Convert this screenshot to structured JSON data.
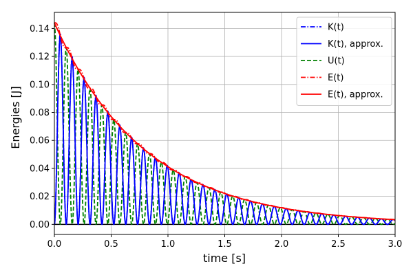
{
  "chart_data": {
    "type": "line",
    "xlabel": "time [s]",
    "ylabel": "Energies [J]",
    "xlim": [
      0,
      3.0
    ],
    "ylim": [
      -0.0072,
      0.1515
    ],
    "grid": true,
    "legend_placement": "top-right",
    "x_ticks": [
      0.0,
      0.5,
      1.0,
      1.5,
      2.0,
      2.5,
      3.0
    ],
    "x_tick_labels": [
      "0.0",
      "0.5",
      "1.0",
      "1.5",
      "2.0",
      "2.5",
      "3.0"
    ],
    "y_ticks": [
      0.0,
      0.02,
      0.04,
      0.06,
      0.08,
      0.1,
      0.12,
      0.14
    ],
    "y_tick_labels": [
      "0.00",
      "0.02",
      "0.04",
      "0.06",
      "0.08",
      "0.10",
      "0.12",
      "0.14"
    ],
    "series": [
      {
        "name": "K(t)",
        "legend_label": "K(t)",
        "color": "#0000ff",
        "style": "dashdot",
        "model": {
          "E0": 0.144,
          "decay_rate": 1.25,
          "omega": 30.0,
          "phase": 0.0,
          "energy_part": "kinetic",
          "exact": true
        }
      },
      {
        "name": "K(t), approx.",
        "legend_label": "K(t), approx.",
        "color": "#0000ff",
        "style": "solid",
        "model": {
          "E0": 0.144,
          "decay_rate": 1.25,
          "omega": 30.0,
          "phase": 0.0,
          "energy_part": "kinetic",
          "exact": false
        }
      },
      {
        "name": "U(t)",
        "legend_label": "U(t)",
        "color": "#008000",
        "style": "dashed",
        "model": {
          "E0": 0.144,
          "decay_rate": 1.25,
          "omega": 30.0,
          "phase": 0.0,
          "energy_part": "potential",
          "exact": false
        }
      },
      {
        "name": "E(t)",
        "legend_label": "E(t)",
        "color": "#ff0000",
        "style": "dashdot",
        "model": {
          "E0": 0.144,
          "decay_rate": 1.25,
          "omega": 30.0,
          "phase": 0.0,
          "energy_part": "total",
          "exact": true
        }
      },
      {
        "name": "E(t), approx.",
        "legend_label": "E(t), approx.",
        "color": "#ff0000",
        "style": "solid",
        "model": {
          "E0": 0.144,
          "decay_rate": 1.25,
          "omega": 30.0,
          "phase": 0.0,
          "energy_part": "total",
          "exact": false
        }
      }
    ]
  }
}
